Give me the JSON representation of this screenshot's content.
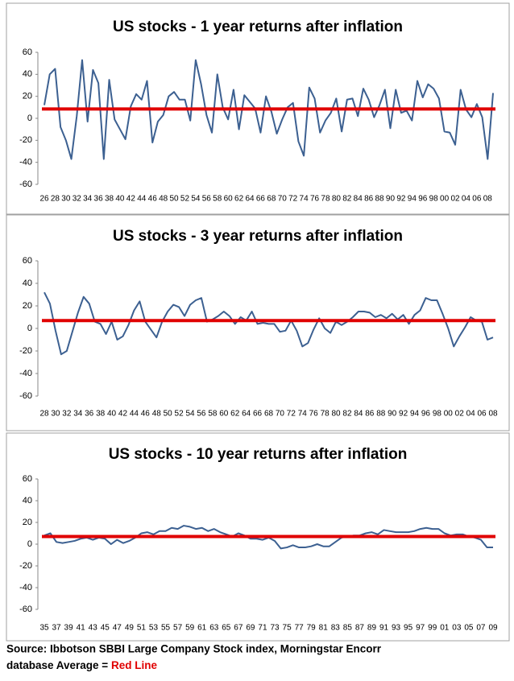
{
  "chart_data": [
    {
      "type": "line",
      "title": "US stocks - 1 year returns after inflation",
      "categories": [
        "26",
        null,
        "28",
        null,
        "30",
        null,
        "32",
        null,
        "34",
        null,
        "36",
        null,
        "38",
        null,
        "40",
        null,
        "42",
        null,
        "44",
        null,
        "46",
        null,
        "48",
        null,
        "50",
        null,
        "52",
        null,
        "54",
        null,
        "56",
        null,
        "58",
        null,
        "60",
        null,
        "62",
        null,
        "64",
        null,
        "66",
        null,
        "68",
        null,
        "70",
        null,
        "72",
        null,
        "74",
        null,
        "76",
        null,
        "78",
        null,
        "80",
        null,
        "82",
        null,
        "84",
        null,
        "86",
        null,
        "88",
        null,
        "90",
        null,
        "92",
        null,
        "94",
        null,
        "96",
        null,
        "98",
        null,
        "00",
        null,
        "02",
        null,
        "04",
        null,
        "06",
        null,
        "08",
        null
      ],
      "values": [
        12,
        40,
        45,
        -8,
        -20,
        -37,
        2,
        53,
        -3,
        44,
        32,
        -37,
        35,
        -1,
        -10,
        -19,
        11,
        22,
        17,
        34,
        -22,
        -3,
        3,
        20,
        24,
        17,
        17,
        -2,
        53,
        31,
        3,
        -13,
        40,
        10,
        -1,
        26,
        -10,
        21,
        15,
        9,
        -13,
        20,
        6,
        -14,
        -1,
        10,
        14,
        -21,
        -34,
        28,
        18,
        -13,
        -2,
        5,
        18,
        -12,
        17,
        18,
        2,
        27,
        17,
        1,
        12,
        26,
        -9,
        26,
        5,
        7,
        -2,
        34,
        19,
        31,
        27,
        18,
        -12,
        -13,
        -24,
        26,
        8,
        1,
        13,
        1,
        -37,
        23
      ],
      "color": "#3c6091",
      "average": 8.5,
      "average_color": "#e00000",
      "ylim": [
        -60,
        60
      ],
      "yticks": [
        -60,
        -40,
        -20,
        0,
        20,
        40,
        60
      ]
    },
    {
      "type": "line",
      "title": "US stocks - 3 year returns after inflation",
      "categories": [
        "28",
        null,
        "30",
        null,
        "32",
        null,
        "34",
        null,
        "36",
        null,
        "38",
        null,
        "40",
        null,
        "42",
        null,
        "44",
        null,
        "46",
        null,
        "48",
        null,
        "50",
        null,
        "52",
        null,
        "54",
        null,
        "56",
        null,
        "58",
        null,
        "60",
        null,
        "62",
        null,
        "64",
        null,
        "66",
        null,
        "68",
        null,
        "70",
        null,
        "72",
        null,
        "74",
        null,
        "76",
        null,
        "78",
        null,
        "80",
        null,
        "82",
        null,
        "84",
        null,
        "86",
        null,
        "88",
        null,
        "90",
        null,
        "92",
        null,
        "94",
        null,
        "96",
        null,
        "98",
        null,
        "00",
        null,
        "02",
        null,
        "04",
        null,
        "06",
        null,
        "08"
      ],
      "values": [
        32,
        22,
        -2,
        -23,
        -20,
        -3,
        14,
        28,
        22,
        6,
        4,
        -5,
        6,
        -10,
        -7,
        3,
        16,
        24,
        6,
        -1,
        -8,
        6,
        15,
        21,
        19,
        11,
        21,
        25,
        27,
        6,
        8,
        11,
        15,
        11,
        4,
        10,
        7,
        15,
        4,
        5,
        4,
        4,
        -3,
        -2,
        7,
        -2,
        -16,
        -13,
        -1,
        9,
        0,
        -4,
        6,
        3,
        6,
        10,
        15,
        15,
        14,
        10,
        12,
        9,
        13,
        8,
        12,
        4,
        12,
        16,
        27,
        25,
        25,
        13,
        0,
        -16,
        -7,
        1,
        10,
        7,
        6,
        -10,
        -8
      ],
      "color": "#3c6091",
      "average": 7,
      "average_color": "#e00000",
      "ylim": [
        -60,
        60
      ],
      "yticks": [
        -60,
        -40,
        -20,
        0,
        20,
        40,
        60
      ]
    },
    {
      "type": "line",
      "title": "US stocks - 10 year returns after inflation",
      "categories": [
        "35",
        null,
        "37",
        null,
        "39",
        null,
        "41",
        null,
        "43",
        null,
        "45",
        null,
        "47",
        null,
        "49",
        null,
        "51",
        null,
        "53",
        null,
        "55",
        null,
        "57",
        null,
        "59",
        null,
        "61",
        null,
        "63",
        null,
        "65",
        null,
        "67",
        null,
        "69",
        null,
        "71",
        null,
        "73",
        null,
        "75",
        null,
        "77",
        null,
        "79",
        null,
        "81",
        null,
        "83",
        null,
        "85",
        null,
        "87",
        null,
        "89",
        null,
        "91",
        null,
        "93",
        null,
        "95",
        null,
        "97",
        null,
        "99",
        null,
        "01",
        null,
        "03",
        null,
        "05",
        null,
        "07",
        null,
        "09"
      ],
      "values": [
        8,
        10,
        2,
        1,
        2,
        3,
        5,
        6,
        4,
        6,
        5,
        0,
        4,
        1,
        3,
        6,
        10,
        11,
        9,
        12,
        12,
        15,
        14,
        17,
        16,
        14,
        15,
        12,
        14,
        11,
        9,
        7,
        10,
        8,
        5,
        5,
        4,
        6,
        3,
        -4,
        -3,
        -1,
        -3,
        -3,
        -2,
        0,
        -2,
        -2,
        2,
        6,
        7,
        8,
        8,
        10,
        11,
        9,
        13,
        12,
        11,
        11,
        11,
        12,
        14,
        15,
        14,
        14,
        10,
        8,
        9,
        9,
        7,
        6,
        4,
        -3,
        -3
      ],
      "color": "#3c6091",
      "average": 7,
      "average_color": "#e00000",
      "ylim": [
        -60,
        60
      ],
      "yticks": [
        -60,
        -40,
        -20,
        0,
        20,
        40,
        60
      ]
    }
  ],
  "footnote": {
    "line1": "Source: Ibbotson SBBI Large Company Stock index, Morningstar Encorr",
    "line2": "database   Average =",
    "highlight": "Red Line"
  }
}
